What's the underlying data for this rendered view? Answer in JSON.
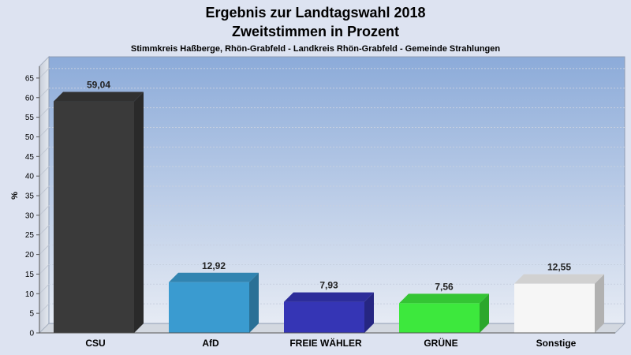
{
  "chart_data": {
    "type": "bar",
    "title": "Ergebnis zur Landtagswahl 2018",
    "title2": "Zweitstimmen in Prozent",
    "subtitle": "Stimmkreis Haßberge, Rhön-Grabfeld - Landkreis Rhön-Grabfeld - Gemeinde Strahlungen",
    "ylabel": "%",
    "ylim": [
      0,
      68
    ],
    "yticks": [
      "0",
      "5",
      "10",
      "15",
      "20",
      "25",
      "30",
      "35",
      "40",
      "45",
      "50",
      "55",
      "60",
      "65"
    ],
    "grid": true,
    "categories": [
      "CSU",
      "AfD",
      "FREIE WÄHLER",
      "GRÜNE",
      "Sonstige"
    ],
    "values": [
      59.04,
      12.92,
      7.93,
      7.56,
      12.55
    ],
    "value_labels": [
      "59,04",
      "12,92",
      "7,93",
      "7,56",
      "12,55"
    ],
    "colors": [
      "#3a3a3a",
      "#3a9bd0",
      "#3535b5",
      "#3de83d",
      "#f6f6f6"
    ]
  }
}
